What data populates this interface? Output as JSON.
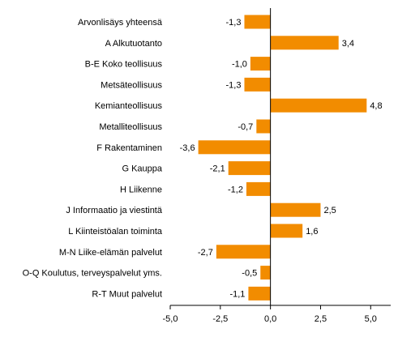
{
  "chart_data": {
    "type": "bar",
    "orientation": "horizontal",
    "categories": [
      "Arvonlisäys yhteensä",
      "A Alkutuotanto",
      "B-E Koko teollisuus",
      "Metsäteollisuus",
      "Kemianteollisuus",
      "Metalliteollisuus",
      "F Rakentaminen",
      "G Kauppa",
      "H Liikenne",
      "J Informaatio ja viestintä",
      "L Kiinteistöalan toiminta",
      "M-N Liike-elämän palvelut",
      "O-Q Koulutus, terveyspalvelut yms.",
      "R-T Muut palvelut"
    ],
    "values": [
      -1.3,
      3.4,
      -1.0,
      -1.3,
      4.8,
      -0.7,
      -3.6,
      -2.1,
      -1.2,
      2.5,
      1.6,
      -2.7,
      -0.5,
      -1.1
    ],
    "value_labels": [
      "-1,3",
      "3,4",
      "-1,0",
      "-1,3",
      "4,8",
      "-0,7",
      "-3,6",
      "-2,1",
      "-1,2",
      "2,5",
      "1,6",
      "-2,7",
      "-0,5",
      "-1,1"
    ],
    "xlim": [
      -5.0,
      6.0
    ],
    "ticks": [
      -5.0,
      -2.5,
      0.0,
      2.5,
      5.0
    ],
    "tick_labels": [
      "-5,0",
      "-2,5",
      "0,0",
      "2,5",
      "5,0"
    ],
    "bar_color": "#f28c00",
    "grid": false,
    "title": "",
    "xlabel": "",
    "ylabel": ""
  }
}
